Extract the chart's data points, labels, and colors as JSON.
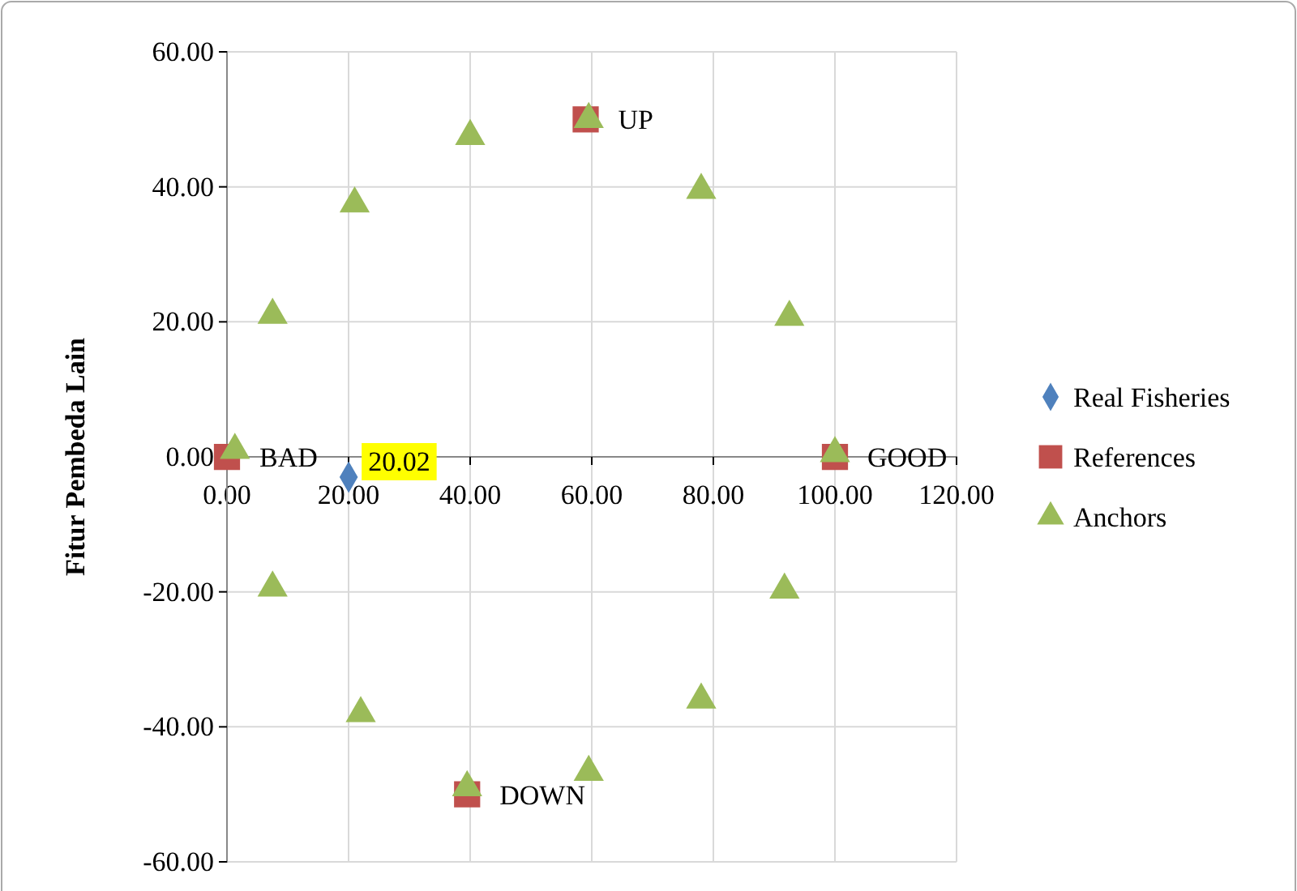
{
  "chart_data": {
    "type": "scatter",
    "ylabel": "Fitur Pembeda Lain",
    "xlim": [
      0,
      120
    ],
    "xticks": [
      {
        "value": 0,
        "label": "0.00"
      },
      {
        "value": 20,
        "label": "20.00"
      },
      {
        "value": 40,
        "label": "40.00"
      },
      {
        "value": 60,
        "label": "60.00"
      },
      {
        "value": 80,
        "label": "80.00"
      },
      {
        "value": 100,
        "label": "100.00"
      },
      {
        "value": 120,
        "label": "120.00"
      }
    ],
    "ylim": [
      -60,
      60
    ],
    "yticks": [
      {
        "value": -60,
        "label": "-60.00"
      },
      {
        "value": -40,
        "label": "-40.00"
      },
      {
        "value": -20,
        "label": "-20.00"
      },
      {
        "value": 0,
        "label": "0.00"
      },
      {
        "value": 20,
        "label": "20.00"
      },
      {
        "value": 40,
        "label": "40.00"
      },
      {
        "value": 60,
        "label": "60.00"
      }
    ],
    "grid": true,
    "legend": "right",
    "series": [
      {
        "name": "Real Fisheries",
        "color": "#4f81bd",
        "marker": "diamond",
        "x": [
          20.02
        ],
        "values": [
          -3
        ]
      },
      {
        "name": "References",
        "color": "#c0504d",
        "marker": "square",
        "x": [
          0,
          100,
          59,
          39.5
        ],
        "values": [
          0,
          0,
          50,
          -50
        ]
      },
      {
        "name": "Anchors",
        "color": "#9bbb59",
        "marker": "triangle",
        "x": [
          1.3,
          7.5,
          21,
          40,
          59.5,
          78,
          92.5,
          100,
          91.7,
          78,
          59.5,
          39.5,
          22,
          7.5
        ],
        "values": [
          1,
          21,
          37.5,
          47.5,
          50,
          39.5,
          20.7,
          0.5,
          -19.7,
          -36,
          -46.7,
          -49,
          -38,
          -19.4
        ]
      }
    ],
    "annotations": [
      {
        "text": "20.02",
        "x": 20.02,
        "y": -3
      },
      {
        "text": "BAD",
        "x": 0,
        "y": 0
      },
      {
        "text": "GOOD",
        "x": 100,
        "y": 0
      },
      {
        "text": "UP",
        "x": 59,
        "y": 50
      },
      {
        "text": "DOWN",
        "x": 39.5,
        "y": -50
      }
    ]
  }
}
